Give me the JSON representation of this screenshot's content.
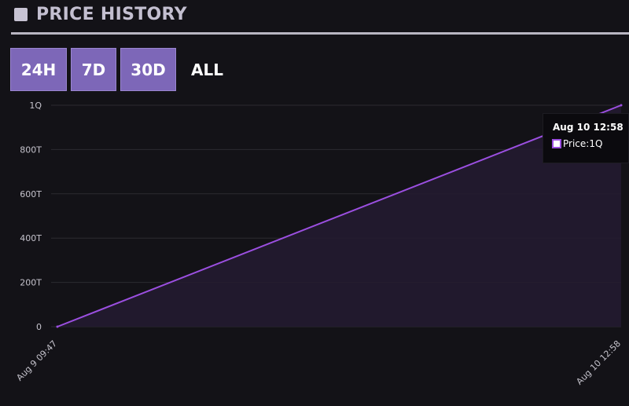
{
  "header": {
    "title": "PRICE HISTORY",
    "icon": "square-icon"
  },
  "tabs": [
    {
      "label": "24H"
    },
    {
      "label": "7D"
    },
    {
      "label": "30D"
    },
    {
      "label": "ALL"
    }
  ],
  "tooltip": {
    "title": "Aug 10 12:58",
    "series_label": "Price",
    "value": "1Q"
  },
  "colors": {
    "line": "#9b4fe0",
    "area": "#231b30",
    "tab_background": "#7d67b8",
    "page_background": "#131217"
  },
  "chart_data": {
    "type": "area",
    "x": [
      "Aug 9 09:47",
      "Aug 10 12:58"
    ],
    "series": [
      {
        "name": "Price",
        "values": [
          0,
          1000000000000000
        ]
      }
    ],
    "y_ticks": [
      {
        "value": 0,
        "label": "0"
      },
      {
        "value": 200000000000000,
        "label": "200T"
      },
      {
        "value": 400000000000000,
        "label": "400T"
      },
      {
        "value": 600000000000000,
        "label": "600T"
      },
      {
        "value": 800000000000000,
        "label": "800T"
      },
      {
        "value": 1000000000000000,
        "label": "1Q"
      }
    ],
    "ylim": [
      0,
      1000000000000000
    ],
    "grid": true,
    "title": "",
    "xlabel": "",
    "ylabel": ""
  }
}
